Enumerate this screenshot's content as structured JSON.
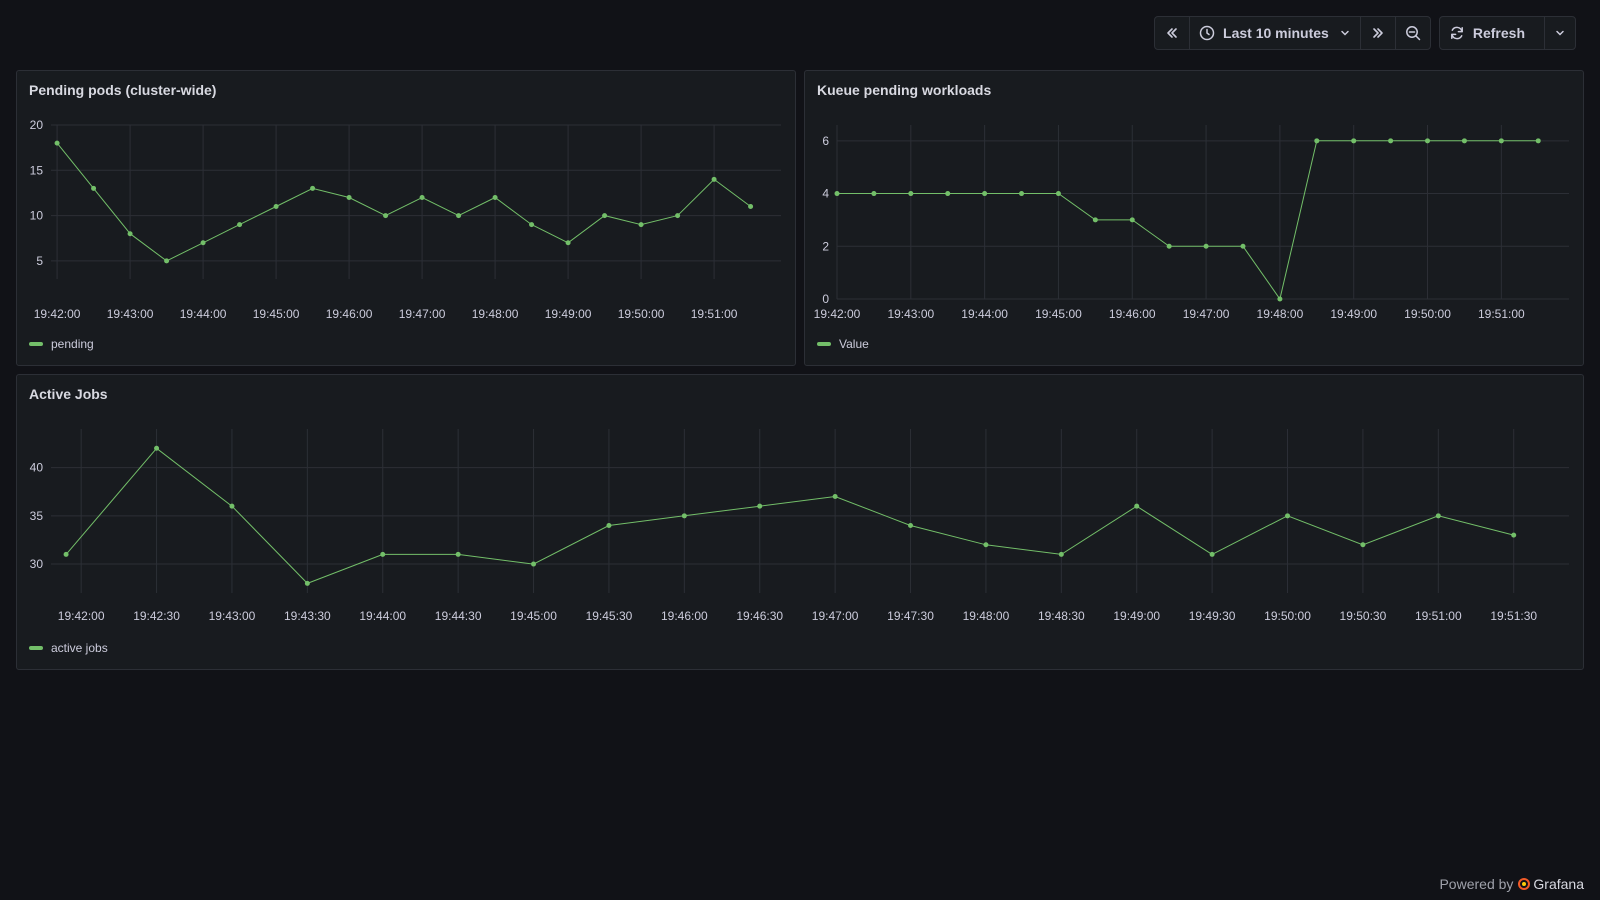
{
  "toolbar": {
    "time_range_label": "Last 10 minutes",
    "refresh_label": "Refresh"
  },
  "footer": {
    "powered_by": "Powered by",
    "brand": "Grafana"
  },
  "colors": {
    "series": "#73bf69",
    "grid": "#2c2f36"
  },
  "panels": {
    "pending": {
      "title": "Pending pods (cluster-wide)",
      "legend": "pending"
    },
    "kueue": {
      "title": "Kueue pending workloads",
      "legend": "Value"
    },
    "jobs": {
      "title": "Active Jobs",
      "legend": "active jobs"
    }
  },
  "chart_data": [
    {
      "id": "pending",
      "type": "line",
      "ylim": [
        3,
        20
      ],
      "yticks": [
        5,
        10,
        15,
        20
      ],
      "xlim": [
        "19:41:55",
        "19:51:55"
      ],
      "xticks": [
        "19:42:00",
        "19:43:00",
        "19:44:00",
        "19:45:00",
        "19:46:00",
        "19:47:00",
        "19:48:00",
        "19:49:00",
        "19:50:00",
        "19:51:00"
      ],
      "series": [
        {
          "name": "pending",
          "x": [
            "19:42:00",
            "19:42:30",
            "19:43:00",
            "19:43:30",
            "19:44:00",
            "19:44:30",
            "19:45:00",
            "19:45:30",
            "19:46:00",
            "19:46:30",
            "19:47:00",
            "19:47:30",
            "19:48:00",
            "19:48:30",
            "19:49:00",
            "19:49:30",
            "19:50:00",
            "19:50:30",
            "19:51:00",
            "19:51:30"
          ],
          "values": [
            18,
            13,
            8,
            5,
            7,
            9,
            11,
            13,
            12,
            10,
            12,
            10,
            12,
            9,
            7,
            10,
            9,
            10,
            14,
            11
          ]
        }
      ]
    },
    {
      "id": "kueue",
      "type": "line",
      "ylim": [
        0,
        6.6
      ],
      "yticks": [
        0,
        2,
        4,
        6
      ],
      "xlim": [
        "19:42:00",
        "19:51:55"
      ],
      "xticks": [
        "19:42:00",
        "19:43:00",
        "19:44:00",
        "19:45:00",
        "19:46:00",
        "19:47:00",
        "19:48:00",
        "19:49:00",
        "19:50:00",
        "19:51:00"
      ],
      "series": [
        {
          "name": "Value",
          "x": [
            "19:42:00",
            "19:42:30",
            "19:43:00",
            "19:43:30",
            "19:44:00",
            "19:44:30",
            "19:45:00",
            "19:45:30",
            "19:46:00",
            "19:46:30",
            "19:47:00",
            "19:47:30",
            "19:48:00",
            "19:48:30",
            "19:49:00",
            "19:49:30",
            "19:50:00",
            "19:50:30",
            "19:51:00",
            "19:51:30"
          ],
          "values": [
            4,
            4,
            4,
            4,
            4,
            4,
            4,
            3,
            3,
            2,
            2,
            2,
            0,
            6,
            6,
            6,
            6,
            6,
            6,
            6
          ]
        }
      ]
    },
    {
      "id": "jobs",
      "type": "line",
      "ylim": [
        27,
        44
      ],
      "yticks": [
        30,
        35,
        40
      ],
      "xlim": [
        "19:41:48",
        "19:51:52"
      ],
      "xticks": [
        "19:42:00",
        "19:42:30",
        "19:43:00",
        "19:43:30",
        "19:44:00",
        "19:44:30",
        "19:45:00",
        "19:45:30",
        "19:46:00",
        "19:46:30",
        "19:47:00",
        "19:47:30",
        "19:48:00",
        "19:48:30",
        "19:49:00",
        "19:49:30",
        "19:50:00",
        "19:50:30",
        "19:51:00",
        "19:51:30"
      ],
      "series": [
        {
          "name": "active jobs",
          "x": [
            "19:41:54",
            "19:42:30",
            "19:43:00",
            "19:43:30",
            "19:44:00",
            "19:44:30",
            "19:45:00",
            "19:45:30",
            "19:46:00",
            "19:46:30",
            "19:47:00",
            "19:47:30",
            "19:48:00",
            "19:48:30",
            "19:49:00",
            "19:49:30",
            "19:50:00",
            "19:50:30",
            "19:51:00",
            "19:51:30"
          ],
          "values": [
            31,
            42,
            36,
            28,
            31,
            31,
            30,
            34,
            35,
            36,
            37,
            34,
            32,
            31,
            36,
            31,
            35,
            32,
            35,
            33
          ]
        }
      ]
    }
  ]
}
